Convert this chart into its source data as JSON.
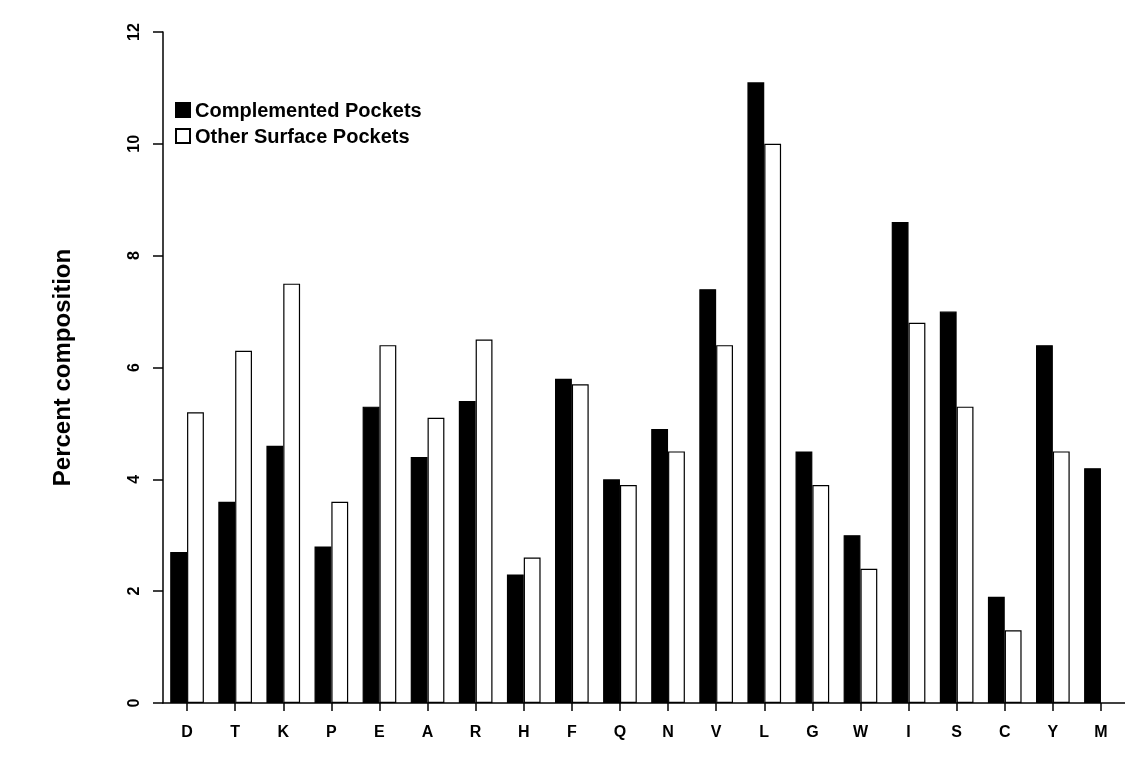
{
  "chart_data": {
    "type": "bar",
    "ylabel": "Percent composition",
    "categories": [
      "D",
      "T",
      "K",
      "P",
      "E",
      "A",
      "R",
      "H",
      "F",
      "Q",
      "N",
      "V",
      "L",
      "G",
      "W",
      "I",
      "S",
      "C",
      "Y",
      "M"
    ],
    "series": [
      {
        "name": "Complemented Pockets",
        "color": "#000000",
        "values": [
          2.7,
          3.6,
          4.6,
          2.8,
          5.3,
          4.4,
          5.4,
          2.3,
          5.8,
          4.0,
          4.9,
          7.4,
          11.1,
          4.5,
          3.0,
          8.6,
          7.0,
          1.9,
          6.4,
          4.2
        ]
      },
      {
        "name": "Other Surface Pockets",
        "color": "#ffffff",
        "values": [
          5.2,
          6.3,
          7.5,
          3.6,
          6.4,
          5.1,
          6.5,
          2.6,
          5.7,
          3.9,
          4.5,
          6.4,
          10.0,
          3.9,
          2.4,
          6.8,
          5.3,
          1.3,
          4.5,
          null
        ]
      }
    ],
    "ylim": [
      0,
      12
    ],
    "yticks": [
      0,
      2,
      4,
      6,
      8,
      10,
      12
    ],
    "grid": false,
    "legend": "top left"
  }
}
